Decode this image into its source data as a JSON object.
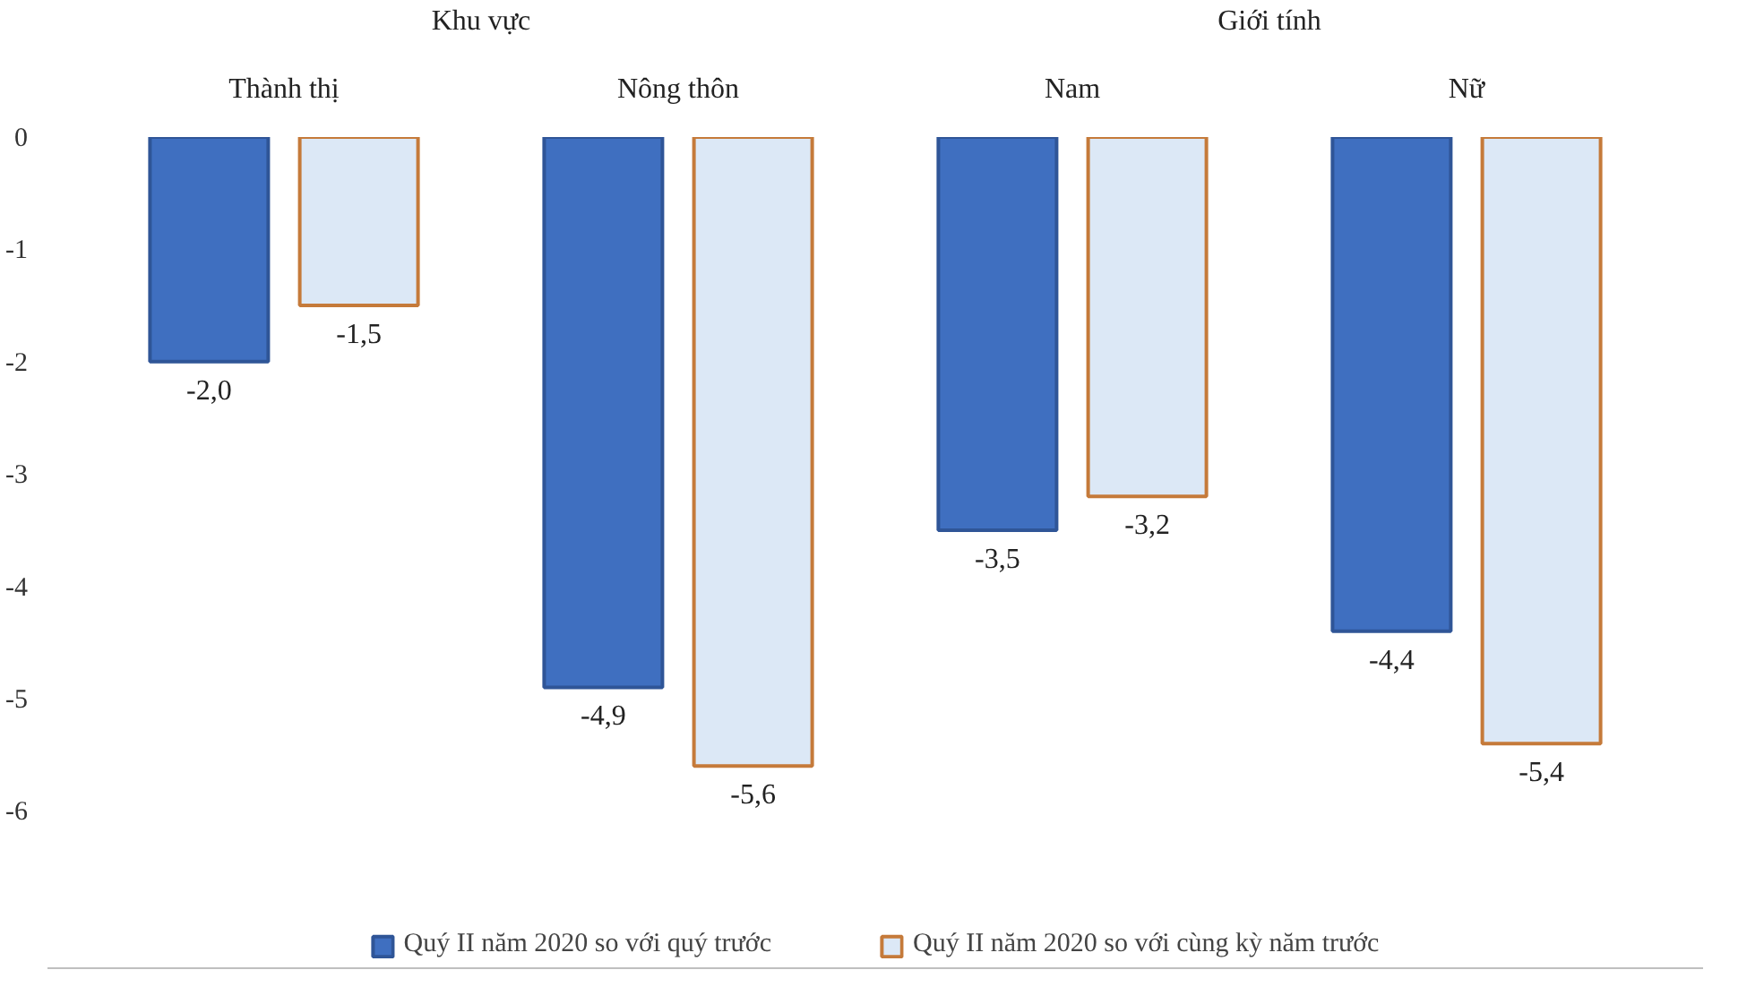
{
  "chart_data": {
    "type": "bar",
    "categories": [
      "Thành thị",
      "Nông thôn",
      "Nam",
      "Nữ"
    ],
    "annotations": [
      "Khu vực",
      "Giới tính"
    ],
    "series": [
      {
        "name": "Quý II năm 2020 so với quý trước",
        "color": "#3f6fc0",
        "values": [
          -2.0,
          -4.9,
          -3.5,
          -4.4
        ],
        "value_labels": [
          "-2,0",
          "-4,9",
          "-3,5",
          "-4,4"
        ]
      },
      {
        "name": "Quý II năm 2020 so với cùng kỳ năm trước",
        "color": "#dce8f6",
        "values": [
          -1.5,
          -5.6,
          -3.2,
          -5.4
        ],
        "value_labels": [
          "-1,5",
          "-5,6",
          "-3,2",
          "-5,4"
        ]
      }
    ],
    "ylim": [
      -7.4,
      0
    ],
    "yticks": [
      0,
      -1,
      -2,
      -3,
      -4,
      -5,
      -6
    ],
    "legend": "bottom"
  }
}
